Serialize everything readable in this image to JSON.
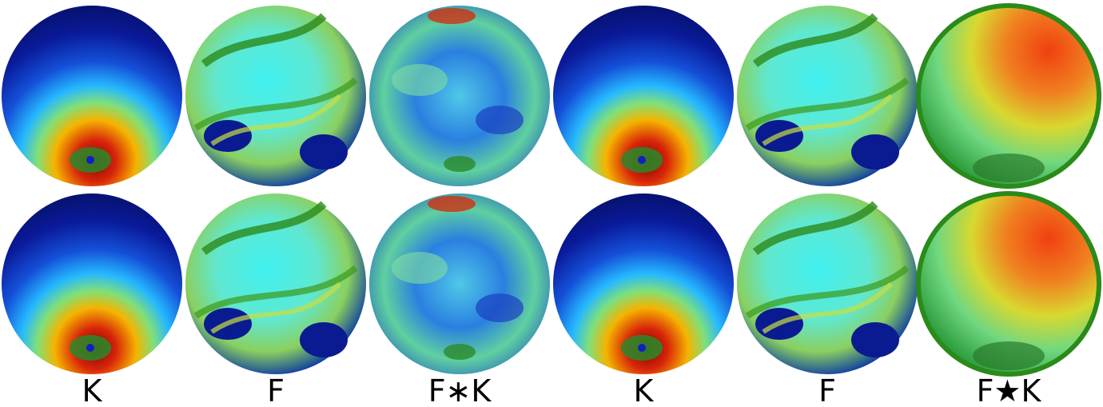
{
  "labels": [
    "K",
    "F",
    "F∗K",
    "K",
    "F",
    "F★K"
  ]
}
